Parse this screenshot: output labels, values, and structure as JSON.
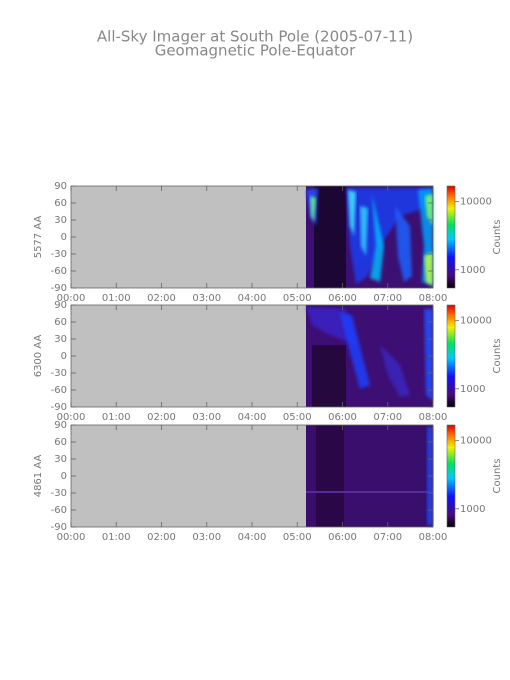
{
  "header": {
    "title": "All-Sky Imager at South Pole (2005-07-11)",
    "subtitle": "Geomagnetic Pole-Equator"
  },
  "chart_data": [
    {
      "type": "heatmap",
      "ylabel": "5577 AA",
      "xlim": [
        0,
        8
      ],
      "xticks": [
        {
          "value": 0,
          "label": "00:00"
        },
        {
          "value": 1,
          "label": "01:00"
        },
        {
          "value": 2,
          "label": "02:00"
        },
        {
          "value": 3,
          "label": "03:00"
        },
        {
          "value": 4,
          "label": "04:00"
        },
        {
          "value": 5,
          "label": "05:00"
        },
        {
          "value": 6,
          "label": "06:00"
        },
        {
          "value": 7,
          "label": "07:00"
        },
        {
          "value": 8,
          "label": "08:00"
        }
      ],
      "ylim": [
        -90,
        90
      ],
      "yticks": [
        -90,
        -60,
        -30,
        0,
        30,
        60,
        90
      ],
      "colorbar": {
        "label": "Counts",
        "scale": "log",
        "lim": [
          540,
          17000
        ],
        "ticks": [
          1000,
          10000
        ]
      }
    },
    {
      "type": "heatmap",
      "ylabel": "6300 AA",
      "xlim": [
        0,
        8
      ],
      "xticks": [
        {
          "value": 0,
          "label": "00:00"
        },
        {
          "value": 1,
          "label": "01:00"
        },
        {
          "value": 2,
          "label": "02:00"
        },
        {
          "value": 3,
          "label": "03:00"
        },
        {
          "value": 4,
          "label": "04:00"
        },
        {
          "value": 5,
          "label": "05:00"
        },
        {
          "value": 6,
          "label": "06:00"
        },
        {
          "value": 7,
          "label": "07:00"
        },
        {
          "value": 8,
          "label": "08:00"
        }
      ],
      "ylim": [
        -90,
        90
      ],
      "yticks": [
        -90,
        -60,
        -30,
        0,
        30,
        60,
        90
      ],
      "colorbar": {
        "label": "Counts",
        "scale": "log",
        "lim": [
          540,
          17000
        ],
        "ticks": [
          1000,
          10000
        ]
      }
    },
    {
      "type": "heatmap",
      "ylabel": "4861 AA",
      "xlim": [
        0,
        8
      ],
      "xticks": [
        {
          "value": 0,
          "label": "00:00"
        },
        {
          "value": 1,
          "label": "01:00"
        },
        {
          "value": 2,
          "label": "02:00"
        },
        {
          "value": 3,
          "label": "03:00"
        },
        {
          "value": 4,
          "label": "04:00"
        },
        {
          "value": 5,
          "label": "05:00"
        },
        {
          "value": 6,
          "label": "06:00"
        },
        {
          "value": 7,
          "label": "07:00"
        },
        {
          "value": 8,
          "label": "08:00"
        }
      ],
      "ylim": [
        -90,
        90
      ],
      "yticks": [
        -90,
        -60,
        -30,
        0,
        30,
        60,
        90
      ],
      "colorbar": {
        "label": "Counts",
        "scale": "log",
        "lim": [
          540,
          17000
        ],
        "ticks": [
          1000,
          10000
        ]
      }
    }
  ]
}
